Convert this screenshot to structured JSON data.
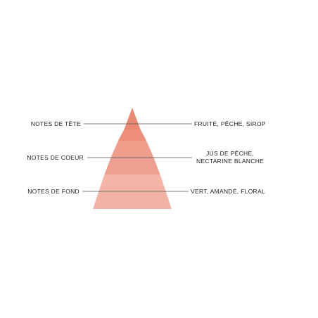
{
  "pyramid": {
    "colors": {
      "top": "#e9826d",
      "middle": "#ef9e8c",
      "bottom": "#f3b4a7",
      "divider": "#f6d0c6",
      "leader_line": "#555555"
    },
    "tiers": [
      {
        "name": "NOTES DE TÊTE",
        "notes": [
          "FRUITÉ, PÊCHE, SIROP"
        ]
      },
      {
        "name": "NOTES DE COEUR",
        "notes": [
          "JUS DE PÊCHE,",
          "NECTARINE BLANCHE"
        ]
      },
      {
        "name": "NOTES DE FOND",
        "notes": [
          "VERT, AMANDÉ, FLORAL"
        ]
      }
    ]
  }
}
